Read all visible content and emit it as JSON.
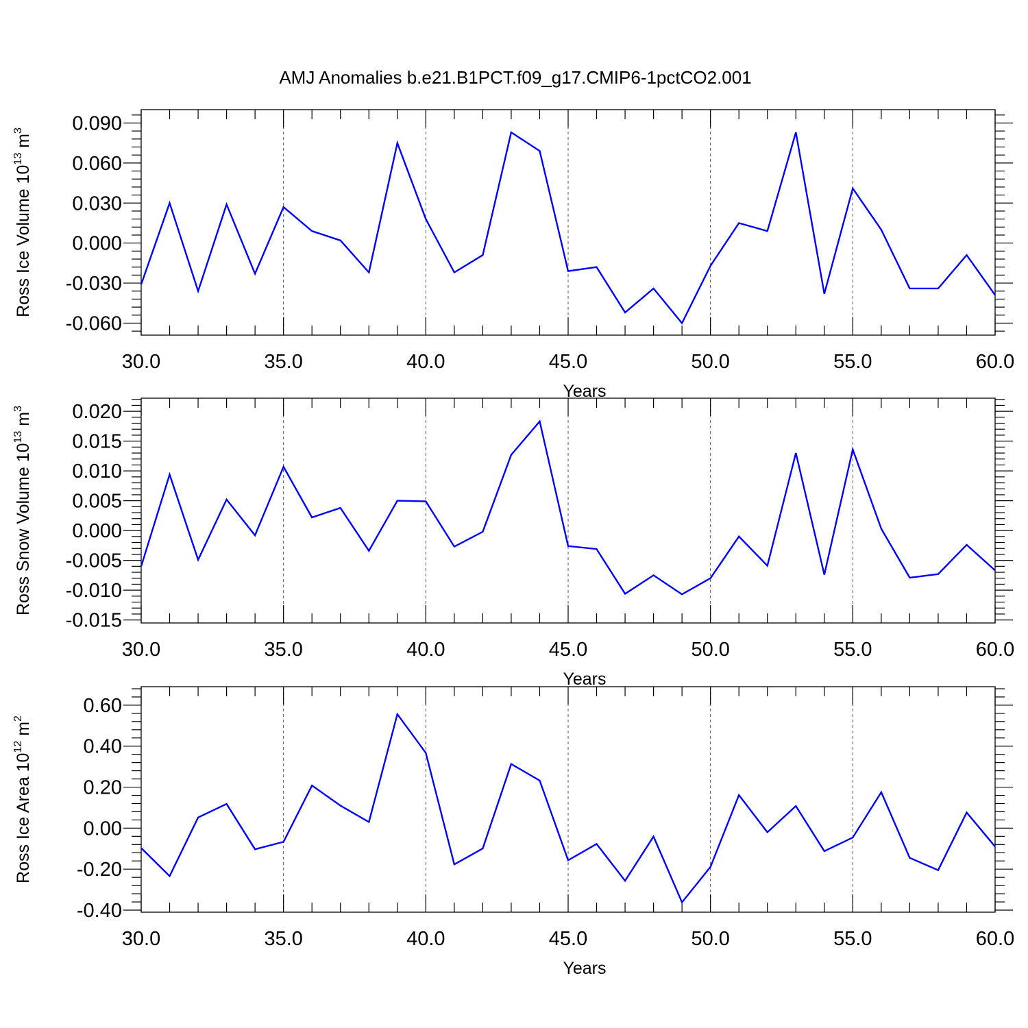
{
  "title": "AMJ Anomalies b.e21.B1PCT.f09_g17.CMIP6-1pctCO2.001",
  "colors": {
    "series": "#0000ff",
    "axis": "#000000",
    "grid": "#555555"
  },
  "chart_data": [
    {
      "type": "line",
      "ylabel": {
        "base": "Ross Ice Volume 10",
        "exp": "13",
        "unit": " m",
        "unit_exp": "3"
      },
      "xlabel": "Years",
      "xlim": [
        30,
        60
      ],
      "ylim": [
        -0.069,
        0.1
      ],
      "xticks": [
        30,
        35,
        40,
        45,
        50,
        55,
        60
      ],
      "xtick_labels": [
        "30.0",
        "35.0",
        "40.0",
        "45.0",
        "50.0",
        "55.0",
        "60.0"
      ],
      "yticks": [
        -0.06,
        -0.03,
        0.0,
        0.03,
        0.06,
        0.09
      ],
      "ytick_labels": [
        "-0.060",
        "-0.030",
        "0.000",
        "0.030",
        "0.060",
        "0.090"
      ],
      "grid": "vertical dashed at major x ticks",
      "x": [
        30,
        31,
        32,
        33,
        34,
        35,
        36,
        37,
        38,
        39,
        40,
        41,
        42,
        43,
        44,
        45,
        46,
        47,
        48,
        49,
        50,
        51,
        52,
        53,
        54,
        55,
        56,
        57,
        58,
        59,
        60
      ],
      "series": [
        {
          "values": [
            -0.031,
            0.03,
            -0.036,
            0.029,
            -0.023,
            0.027,
            0.009,
            0.002,
            -0.022,
            0.075,
            0.018,
            -0.022,
            -0.009,
            0.083,
            0.069,
            -0.021,
            -0.018,
            -0.052,
            -0.034,
            -0.06,
            -0.017,
            0.015,
            0.009,
            0.083,
            -0.038,
            0.041,
            0.01,
            -0.034,
            -0.034,
            -0.009,
            -0.039
          ]
        }
      ]
    },
    {
      "type": "line",
      "ylabel": {
        "base": "Ross Snow Volume 10",
        "exp": "13",
        "unit": " m",
        "unit_exp": "3"
      },
      "xlabel": "Years",
      "xlim": [
        30,
        60
      ],
      "ylim": [
        -0.0155,
        0.0222
      ],
      "xticks": [
        30,
        35,
        40,
        45,
        50,
        55,
        60
      ],
      "xtick_labels": [
        "30.0",
        "35.0",
        "40.0",
        "45.0",
        "50.0",
        "55.0",
        "60.0"
      ],
      "yticks": [
        -0.015,
        -0.01,
        -0.005,
        0.0,
        0.005,
        0.01,
        0.015,
        0.02
      ],
      "ytick_labels": [
        "-0.015",
        "-0.010",
        "-0.005",
        "0.000",
        "0.005",
        "0.010",
        "0.015",
        "0.020"
      ],
      "grid": "vertical dashed at major x ticks",
      "x": [
        30,
        31,
        32,
        33,
        34,
        35,
        36,
        37,
        38,
        39,
        40,
        41,
        42,
        43,
        44,
        45,
        46,
        47,
        48,
        49,
        50,
        51,
        52,
        53,
        54,
        55,
        56,
        57,
        58,
        59,
        60
      ],
      "series": [
        {
          "values": [
            -0.006,
            0.0094,
            -0.0049,
            0.0052,
            -0.0008,
            0.0107,
            0.0022,
            0.0038,
            -0.0034,
            0.005,
            0.0049,
            -0.0027,
            -0.0002,
            0.0127,
            0.0183,
            -0.0026,
            -0.0031,
            -0.0106,
            -0.0075,
            -0.0107,
            -0.008,
            -0.001,
            -0.0059,
            0.013,
            -0.0074,
            0.0136,
            0.0003,
            -0.0079,
            -0.0073,
            -0.0024,
            -0.0067
          ]
        }
      ]
    },
    {
      "type": "line",
      "ylabel": {
        "base": "Ross Ice Area 10",
        "exp": "12",
        "unit": " m",
        "unit_exp": "2"
      },
      "xlabel": "Years",
      "xlim": [
        30,
        60
      ],
      "ylim": [
        -0.41,
        0.69
      ],
      "xticks": [
        30,
        35,
        40,
        45,
        50,
        55,
        60
      ],
      "xtick_labels": [
        "30.0",
        "35.0",
        "40.0",
        "45.0",
        "50.0",
        "55.0",
        "60.0"
      ],
      "yticks": [
        -0.4,
        -0.2,
        0.0,
        0.2,
        0.4,
        0.6
      ],
      "ytick_labels": [
        "-0.40",
        "-0.20",
        "0.00",
        "0.20",
        "0.40",
        "0.60"
      ],
      "grid": "vertical dashed at major x ticks",
      "x": [
        30,
        31,
        32,
        33,
        34,
        35,
        36,
        37,
        38,
        39,
        40,
        41,
        42,
        43,
        44,
        45,
        46,
        47,
        48,
        49,
        50,
        51,
        52,
        53,
        54,
        55,
        56,
        57,
        58,
        59,
        60
      ],
      "series": [
        {
          "values": [
            -0.097,
            -0.234,
            0.052,
            0.118,
            -0.103,
            -0.067,
            0.208,
            0.11,
            0.03,
            0.556,
            0.367,
            -0.177,
            -0.099,
            0.313,
            0.232,
            -0.157,
            -0.077,
            -0.257,
            -0.041,
            -0.362,
            -0.189,
            0.161,
            -0.02,
            0.108,
            -0.112,
            -0.046,
            0.175,
            -0.145,
            -0.205,
            0.076,
            -0.09
          ]
        }
      ]
    }
  ]
}
